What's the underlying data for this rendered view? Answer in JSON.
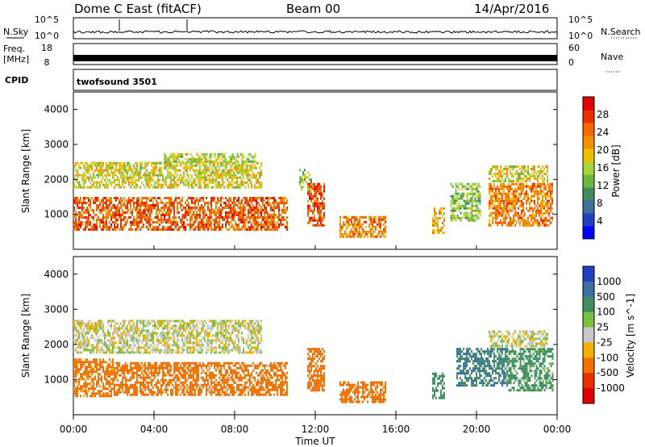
{
  "header": {
    "radar": "Dome C East (fitACF)",
    "beam": "Beam 00",
    "date": "14/Apr/2016"
  },
  "top_panels": {
    "nsky_label": "N.Sky",
    "nsky_ticks": [
      "10^5",
      "10^0"
    ],
    "nsearch_label": "N.Search",
    "nsearch_ticks": [
      "10^5",
      "10^0"
    ],
    "freq_label_1": "Freq.",
    "freq_label_2": "[MHz]",
    "freq_ticks": [
      "18",
      "8"
    ],
    "nave_label": "Nave",
    "nave_ticks": [
      "60",
      "0"
    ],
    "cpid_label": "CPID",
    "cpid_value": "twofsound 3501"
  },
  "colors": {
    "power_scale": [
      "#0000ff",
      "#2040c0",
      "#3c6e9e",
      "#3f8f5e",
      "#6db843",
      "#a8d63a",
      "#f0c000",
      "#f39000",
      "#f06a00",
      "#e83000",
      "#e00000"
    ],
    "velocity_scale": [
      "#2040c0",
      "#3c6e9e",
      "#3f8f5e",
      "#7ac040",
      "#c8c8c8",
      "#f3b000",
      "#f07000",
      "#e83000",
      "#e00000"
    ]
  },
  "chart_data": [
    {
      "type": "heatmap",
      "name": "power",
      "xlabel": "Time UT",
      "ylabel": "Slant Range [km]",
      "x_ticks": [
        "00:00",
        "04:00",
        "08:00",
        "12:00",
        "16:00",
        "20:00",
        "00:00"
      ],
      "x_range_hours": [
        0,
        24
      ],
      "y_ticks": [
        1000,
        2000,
        3000,
        4000
      ],
      "ylim": [
        0,
        4500
      ],
      "colorbar_label": "Power [dB]",
      "colorbar_ticks": [
        "4",
        "8",
        "12",
        "16",
        "20",
        "24",
        "28"
      ],
      "colorbar_range": [
        0,
        32
      ],
      "echo_regions": [
        {
          "t0": 0.0,
          "t1": 10.6,
          "r0": 550,
          "r1": 1500,
          "level": 26
        },
        {
          "t0": 0.0,
          "t1": 9.3,
          "r0": 1750,
          "r1": 2500,
          "level": 18
        },
        {
          "t0": 4.5,
          "t1": 9.0,
          "r0": 2500,
          "r1": 2750,
          "level": 16
        },
        {
          "t0": 11.6,
          "t1": 12.4,
          "r0": 700,
          "r1": 1900,
          "level": 27
        },
        {
          "t0": 11.2,
          "t1": 11.8,
          "r0": 1700,
          "r1": 2300,
          "level": 14
        },
        {
          "t0": 13.2,
          "t1": 15.5,
          "r0": 350,
          "r1": 950,
          "level": 24
        },
        {
          "t0": 17.8,
          "t1": 18.4,
          "r0": 500,
          "r1": 1200,
          "level": 22
        },
        {
          "t0": 18.7,
          "t1": 20.2,
          "r0": 800,
          "r1": 1900,
          "level": 14
        },
        {
          "t0": 20.6,
          "t1": 23.8,
          "r0": 700,
          "r1": 1900,
          "level": 24
        },
        {
          "t0": 20.6,
          "t1": 23.5,
          "r0": 1950,
          "r1": 2400,
          "level": 18
        }
      ]
    },
    {
      "type": "heatmap",
      "name": "velocity",
      "xlabel": "Time UT",
      "ylabel": "Slant Range [km]",
      "x_ticks": [
        "00:00",
        "04:00",
        "08:00",
        "12:00",
        "16:00",
        "20:00",
        "00:00"
      ],
      "x_range_hours": [
        0,
        24
      ],
      "y_ticks": [
        1000,
        2000,
        3000,
        4000
      ],
      "ylim": [
        0,
        4500
      ],
      "colorbar_label": "Velocity [m s^-1]",
      "colorbar_ticks": [
        "1000",
        "500",
        "100",
        "25",
        "-25",
        "-100",
        "-500",
        "-1000"
      ],
      "echo_regions": [
        {
          "t0": 0.0,
          "t1": 2.0,
          "r0": 550,
          "r1": 1600,
          "level": -150
        },
        {
          "t0": 2.0,
          "t1": 10.6,
          "r0": 550,
          "r1": 1500,
          "level": -300
        },
        {
          "t0": 0.0,
          "t1": 9.3,
          "r0": 1750,
          "r1": 2700,
          "level": 0
        },
        {
          "t0": 11.6,
          "t1": 12.4,
          "r0": 700,
          "r1": 1900,
          "level": -400
        },
        {
          "t0": 13.2,
          "t1": 15.5,
          "r0": 350,
          "r1": 950,
          "level": -200
        },
        {
          "t0": 17.8,
          "t1": 18.4,
          "r0": 500,
          "r1": 1200,
          "level": 200
        },
        {
          "t0": 19.0,
          "t1": 21.5,
          "r0": 800,
          "r1": 1900,
          "level": 500
        },
        {
          "t0": 21.5,
          "t1": 23.8,
          "r0": 700,
          "r1": 1900,
          "level": 150
        },
        {
          "t0": 20.6,
          "t1": 23.5,
          "r0": 1950,
          "r1": 2400,
          "level": 0
        }
      ]
    }
  ]
}
